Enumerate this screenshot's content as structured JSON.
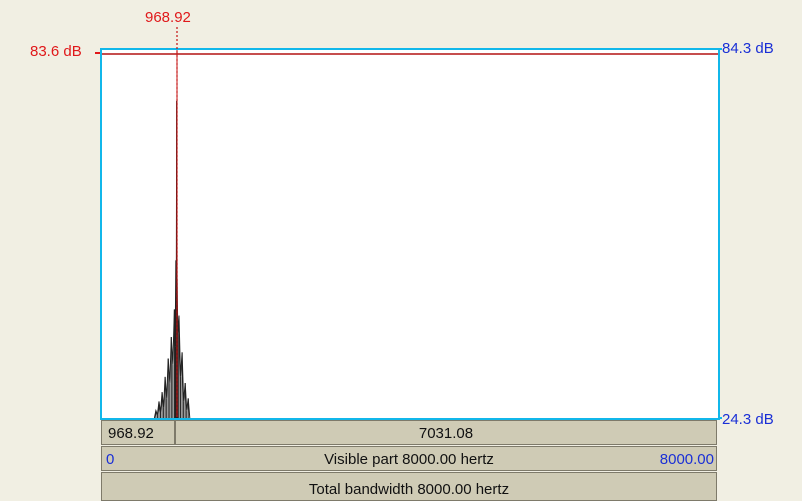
{
  "cursor": {
    "frequency_label": "968.92",
    "level_label": "83.6 dB"
  },
  "axis": {
    "top_db": "84.3 dB",
    "bottom_db": "24.3 dB"
  },
  "selection": {
    "left_value": "968.92",
    "right_value": "7031.08"
  },
  "visible": {
    "start": "0",
    "label": "Visible part 8000.00 hertz",
    "end": "8000.00"
  },
  "total": {
    "label": "Total bandwidth 8000.00 hertz"
  },
  "colors": {
    "cursor": "#e0181a",
    "axis": "#1a2fd6",
    "frame": "#11b7ea",
    "spectrum": "#222222"
  },
  "chart_data": {
    "type": "line",
    "x_unit": "hertz",
    "y_unit": "dB",
    "xlim": [
      0,
      8000
    ],
    "ylim": [
      24.3,
      84.3
    ],
    "cursor_x": 968.92,
    "cursor_y": 83.6,
    "series": [
      {
        "values": [
          [
            680,
            24.3
          ],
          [
            700,
            25.5
          ],
          [
            720,
            24.8
          ],
          [
            740,
            27.0
          ],
          [
            760,
            25.2
          ],
          [
            780,
            28.5
          ],
          [
            800,
            26.0
          ],
          [
            820,
            31.0
          ],
          [
            840,
            27.5
          ],
          [
            860,
            34.0
          ],
          [
            880,
            30.0
          ],
          [
            900,
            37.5
          ],
          [
            920,
            33.0
          ],
          [
            940,
            42.0
          ],
          [
            950,
            36.0
          ],
          [
            960,
            50.0
          ],
          [
            965,
            45.0
          ],
          [
            970,
            76.0
          ],
          [
            975,
            47.0
          ],
          [
            985,
            38.0
          ],
          [
            1000,
            41.0
          ],
          [
            1020,
            31.0
          ],
          [
            1040,
            35.0
          ],
          [
            1060,
            27.0
          ],
          [
            1080,
            30.0
          ],
          [
            1100,
            25.5
          ],
          [
            1120,
            27.5
          ],
          [
            1140,
            24.3
          ]
        ]
      }
    ]
  }
}
